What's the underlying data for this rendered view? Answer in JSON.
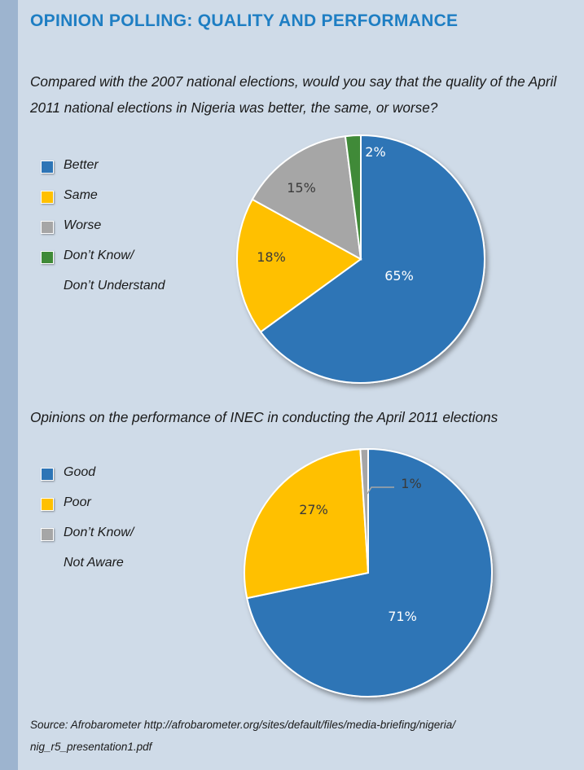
{
  "header": {
    "title": "OPINION POLLING: QUALITY AND PERFORMANCE"
  },
  "source": "Source: Afrobarometer http://afrobarometer.org/sites/default/files/media-briefing/nigeria/ nig_r5_presentation1.pdf",
  "chart_data": [
    {
      "type": "pie",
      "title": "Compared with the 2007 national elections, would you say that the quality of the April 2011 national elections in Nigeria was better, the same, or worse?",
      "legend_position": "left",
      "slices": [
        {
          "label": "Better",
          "value": 65,
          "display": "65%",
          "color": "#2e75b6",
          "label_color": "#ffffff"
        },
        {
          "label": "Same",
          "value": 18,
          "display": "18%",
          "color": "#ffc000",
          "label_color": "#3a3a3a"
        },
        {
          "label": "Worse",
          "value": 15,
          "display": "15%",
          "color": "#a6a6a6",
          "label_color": "#3a3a3a"
        },
        {
          "label": "Don’t Know/",
          "label_line2": "Don’t Understand",
          "value": 2,
          "display": "2%",
          "color": "#3f8a37",
          "label_color": "#ffffff"
        }
      ]
    },
    {
      "type": "pie",
      "title": "Opinions on the performance of INEC in conducting the April 2011 elections",
      "legend_position": "left",
      "slices": [
        {
          "label": "Good",
          "value": 71,
          "display": "71%",
          "color": "#2e75b6",
          "label_color": "#ffffff"
        },
        {
          "label": "Poor",
          "value": 27,
          "display": "27%",
          "color": "#ffc000",
          "label_color": "#3a3a3a"
        },
        {
          "label": "Don’t Know/",
          "label_line2": "Not Aware",
          "value": 1,
          "display": "1%",
          "color": "#a6a6a6",
          "label_color": "#3a3a3a"
        }
      ]
    }
  ]
}
